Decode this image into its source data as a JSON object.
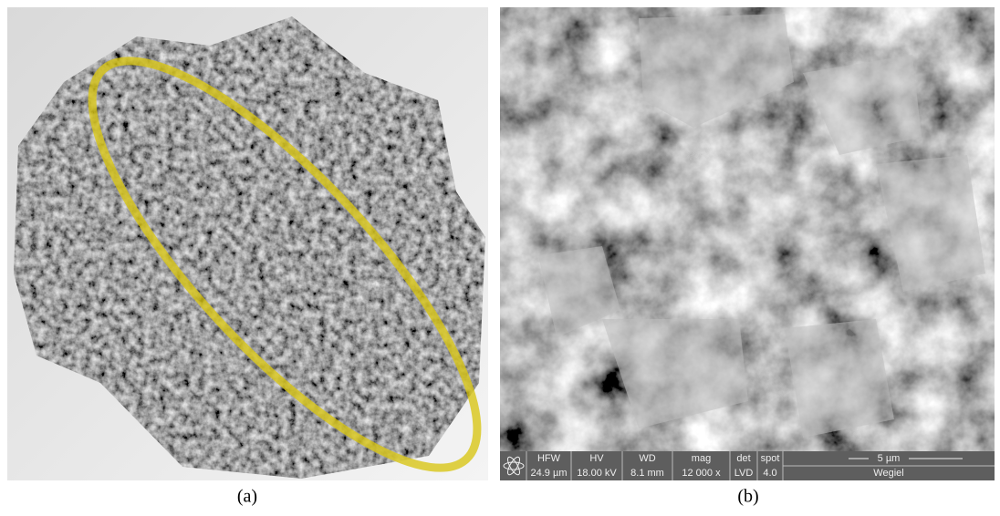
{
  "panels": [
    {
      "label": "(a)"
    },
    {
      "label": "(b)",
      "info_bar": {
        "fields": [
          {
            "name": "HFW",
            "value": "24.9 µm"
          },
          {
            "name": "HV",
            "value": "18.00 kV"
          },
          {
            "name": "WD",
            "value": "8.1 mm"
          },
          {
            "name": "mag",
            "value": "12 000 x"
          },
          {
            "name": "det",
            "value": "LVD"
          },
          {
            "name": "spot",
            "value": "4.0"
          }
        ],
        "scale_bar": "5 µm",
        "sample": "Wegiel"
      }
    }
  ]
}
